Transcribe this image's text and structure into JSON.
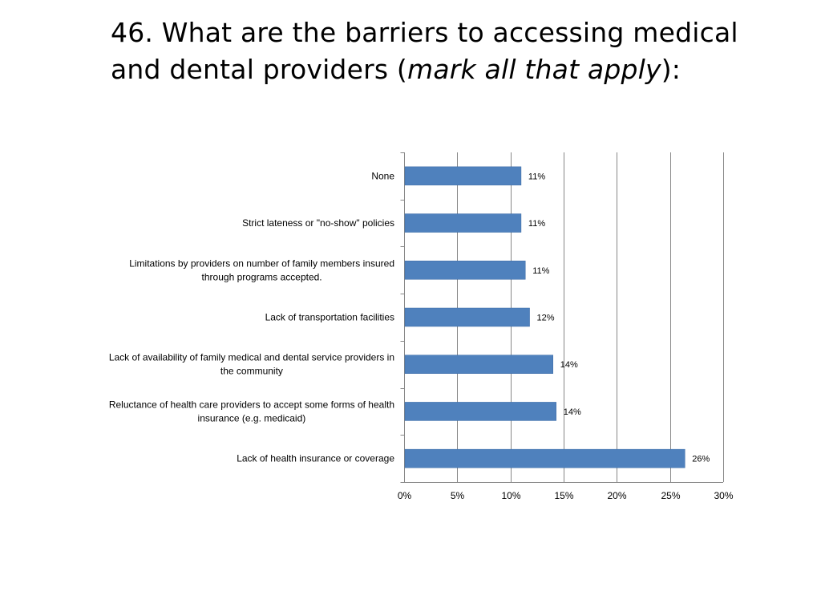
{
  "slide": {
    "title_prefix": "46. What are the barriers to accessing medical and dental providers (",
    "title_emphasis": "mark all that apply",
    "title_suffix": "):"
  },
  "chart_data": {
    "type": "bar",
    "orientation": "horizontal",
    "categories": [
      "None",
      "Strict lateness or \"no-show\" policies",
      "Limitations by providers on number of family members insured through programs accepted.",
      "Lack of transportation facilities",
      "Lack of availability of family medical and dental service providers in the community",
      "Reluctance of health care providers to accept some forms of health insurance (e.g. medicaid)",
      "Lack of health insurance or coverage"
    ],
    "category_lines": [
      [
        "None"
      ],
      [
        "Strict lateness or \"no-show\" policies"
      ],
      [
        "Limitations by providers on number of family members insured",
        "through programs accepted."
      ],
      [
        "Lack of transportation facilities"
      ],
      [
        "Lack of availability of family medical and dental service providers in",
        "the community"
      ],
      [
        "Reluctance of health care providers to accept some forms of health",
        "insurance (e.g. medicaid)"
      ],
      [
        "Lack of health insurance or coverage"
      ]
    ],
    "values": [
      0.11,
      0.11,
      0.114,
      0.118,
      0.14,
      0.143,
      0.264
    ],
    "data_labels": [
      "11%",
      "11%",
      "11%",
      "12%",
      "14%",
      "14%",
      "26%"
    ],
    "xlim": [
      0,
      0.3
    ],
    "x_ticks": [
      0,
      0.05,
      0.1,
      0.15,
      0.2,
      0.25,
      0.3
    ],
    "x_tick_labels": [
      "0%",
      "5%",
      "10%",
      "15%",
      "20%",
      "25%",
      "30%"
    ],
    "grid": true,
    "legend": "none",
    "title": "",
    "xlabel": "",
    "ylabel": "",
    "colors": {
      "bar": "#4F81BD",
      "bar_edge": "#3A6AA6",
      "gridline": "#878787",
      "axis": "#878787"
    }
  }
}
